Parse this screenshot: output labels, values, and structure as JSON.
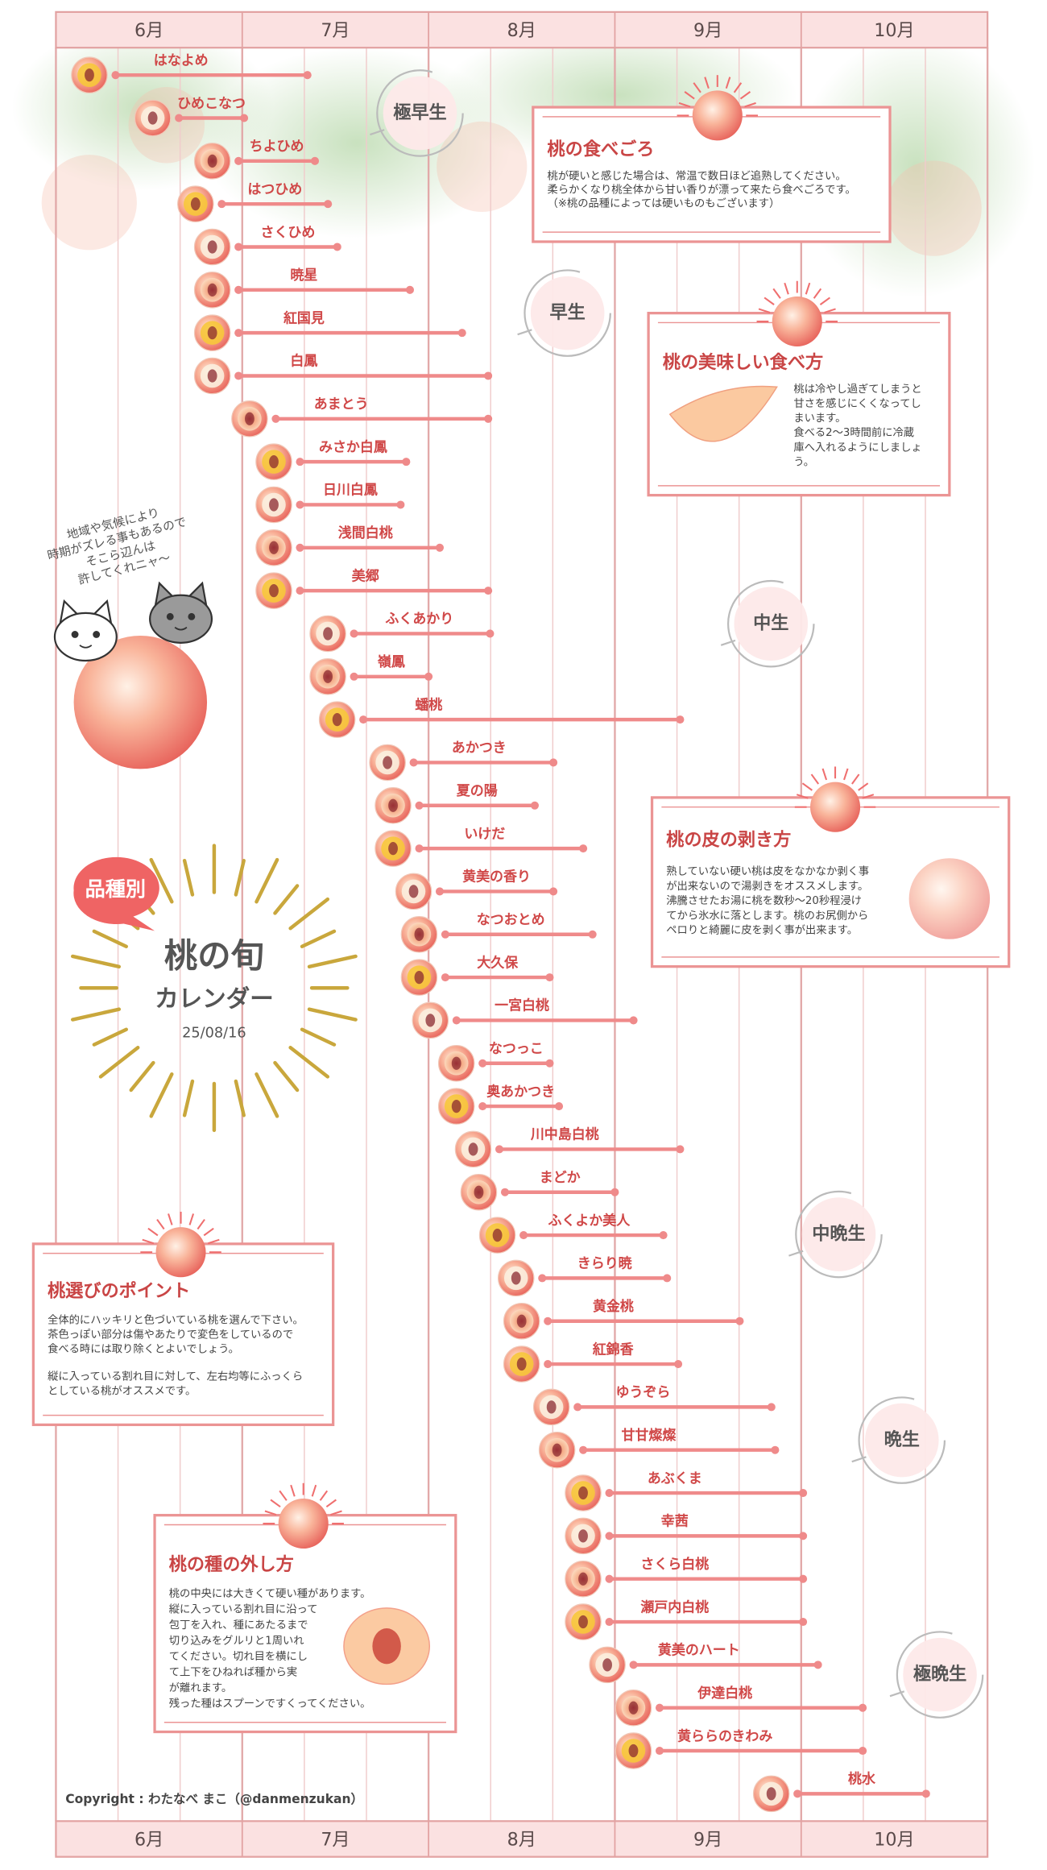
{
  "chart_data": {
    "type": "gantt",
    "xlim": [
      6,
      11
    ],
    "xticks": [
      {
        "value": 6.5,
        "label": "6月"
      },
      {
        "value": 7.5,
        "label": "7月"
      },
      {
        "value": 8.5,
        "label": "8月"
      },
      {
        "value": 9.5,
        "label": "9月"
      },
      {
        "value": 10.5,
        "label": "10月"
      }
    ],
    "color": "#ef8a8a",
    "categories": [
      "はなよめ",
      "ひめこなつ",
      "ちよひめ",
      "はつひめ",
      "さくひめ",
      "暁星",
      "紅国見",
      "白鳳",
      "あまとう",
      "みさか白鳳",
      "日川白鳳",
      "浅間白桃",
      "美郷",
      "ふくあかり",
      "嶺鳳",
      "蟠桃",
      "あかつき",
      "夏の陽",
      "いけだ",
      "黄美の香り",
      "なつおとめ",
      "大久保",
      "一宮白桃",
      "なつっこ",
      "奥あかつき",
      "川中島白桃",
      "まどか",
      "ふくよか美人",
      "きらり暁",
      "黄金桃",
      "紅錦香",
      "ゆうぞら",
      "甘甘燦燦",
      "あぶくま",
      "幸茜",
      "さくら白桃",
      "瀬戸内白桃",
      "黄美のハート",
      "伊達白桃",
      "黄ららのきわみ",
      "桃水"
    ],
    "start": [
      6.32,
      6.66,
      6.98,
      6.89,
      6.98,
      6.98,
      6.98,
      6.98,
      7.18,
      7.31,
      7.31,
      7.31,
      7.31,
      7.6,
      7.6,
      7.65,
      7.92,
      7.95,
      7.95,
      8.06,
      8.09,
      8.09,
      8.15,
      8.29,
      8.29,
      8.38,
      8.41,
      8.51,
      8.61,
      8.64,
      8.64,
      8.8,
      8.83,
      8.97,
      8.97,
      8.97,
      8.97,
      9.1,
      9.24,
      9.24,
      9.98
    ],
    "end": [
      7.35,
      7.01,
      7.39,
      7.46,
      7.51,
      7.9,
      8.18,
      8.32,
      8.32,
      7.88,
      7.85,
      8.06,
      8.32,
      8.33,
      8.0,
      9.35,
      8.67,
      8.57,
      8.83,
      8.67,
      8.88,
      8.65,
      9.1,
      8.65,
      8.7,
      9.35,
      9.0,
      9.26,
      9.28,
      9.67,
      9.34,
      9.84,
      9.86,
      10.01,
      10.01,
      10.01,
      10.01,
      10.09,
      10.33,
      10.33,
      10.67
    ]
  },
  "stages": [
    "極早生",
    "早生",
    "中生",
    "中晩生",
    "晩生",
    "極晩生"
  ],
  "title_block": {
    "badge": "品種別",
    "title": "桃の旬",
    "subtitle": "カレンダー",
    "date": "25/08/16"
  },
  "note": [
    "地域や気候により",
    "時期がズレる事もあるので",
    "そこら辺んは",
    "許してくれニャ〜"
  ],
  "boxes": [
    {
      "title": "桃の食べごろ",
      "paragraphs": [
        [
          "桃が硬いと感じた場合は、常温で数日ほど追熟してください。",
          "柔らかくなり桃全体から甘い香りが漂って来たら食べごろです。",
          "（※桃の品種によっては硬いものもございます）"
        ]
      ]
    },
    {
      "title": "桃の美味しい食べ方",
      "paragraphs": [
        [
          "桃は冷やし過ぎてしまうと",
          "甘さを感じにくくなってし",
          "まいます。",
          "食べる2〜3時間前に冷蔵",
          "庫へ入れるようにしましょ",
          "う。"
        ]
      ]
    },
    {
      "title": "桃の皮の剥き方",
      "paragraphs": [
        [
          "熟していない硬い桃は皮をなかなか剥く事",
          "が出来ないので湯剥きをオススメします。",
          "沸騰させたお湯に桃を数秒〜20秒程浸け",
          "てから氷水に落とします。桃のお尻側から",
          "ペロりと綺麗に皮を剥く事が出来ます。"
        ]
      ]
    },
    {
      "title": "桃選びのポイント",
      "paragraphs": [
        [
          "全体的にハッキリと色づいている桃を選んで下さい。",
          "茶色っぽい部分は傷やあたりで変色をしているので",
          "食べる時には取り除くとよいでしょう。"
        ],
        [
          "縦に入っている割れ目に対して、左右均等にふっくら",
          "としている桃がオススメです。"
        ]
      ]
    },
    {
      "title": "桃の種の外し方",
      "paragraphs": [
        [
          "桃の中央には大きくて硬い種があります。",
          "縦に入っている割れ目に沿って",
          "包丁を入れ、種にあたるまで",
          "切り込みをグルリと1周いれ",
          "てください。切れ目を横にし",
          "て上下をひねれば種から実",
          "が離れます。",
          "残った種はスプーンですくってください。"
        ]
      ]
    }
  ],
  "copyright": "Copyright : わたなべ まこ（@danmenzukan）"
}
